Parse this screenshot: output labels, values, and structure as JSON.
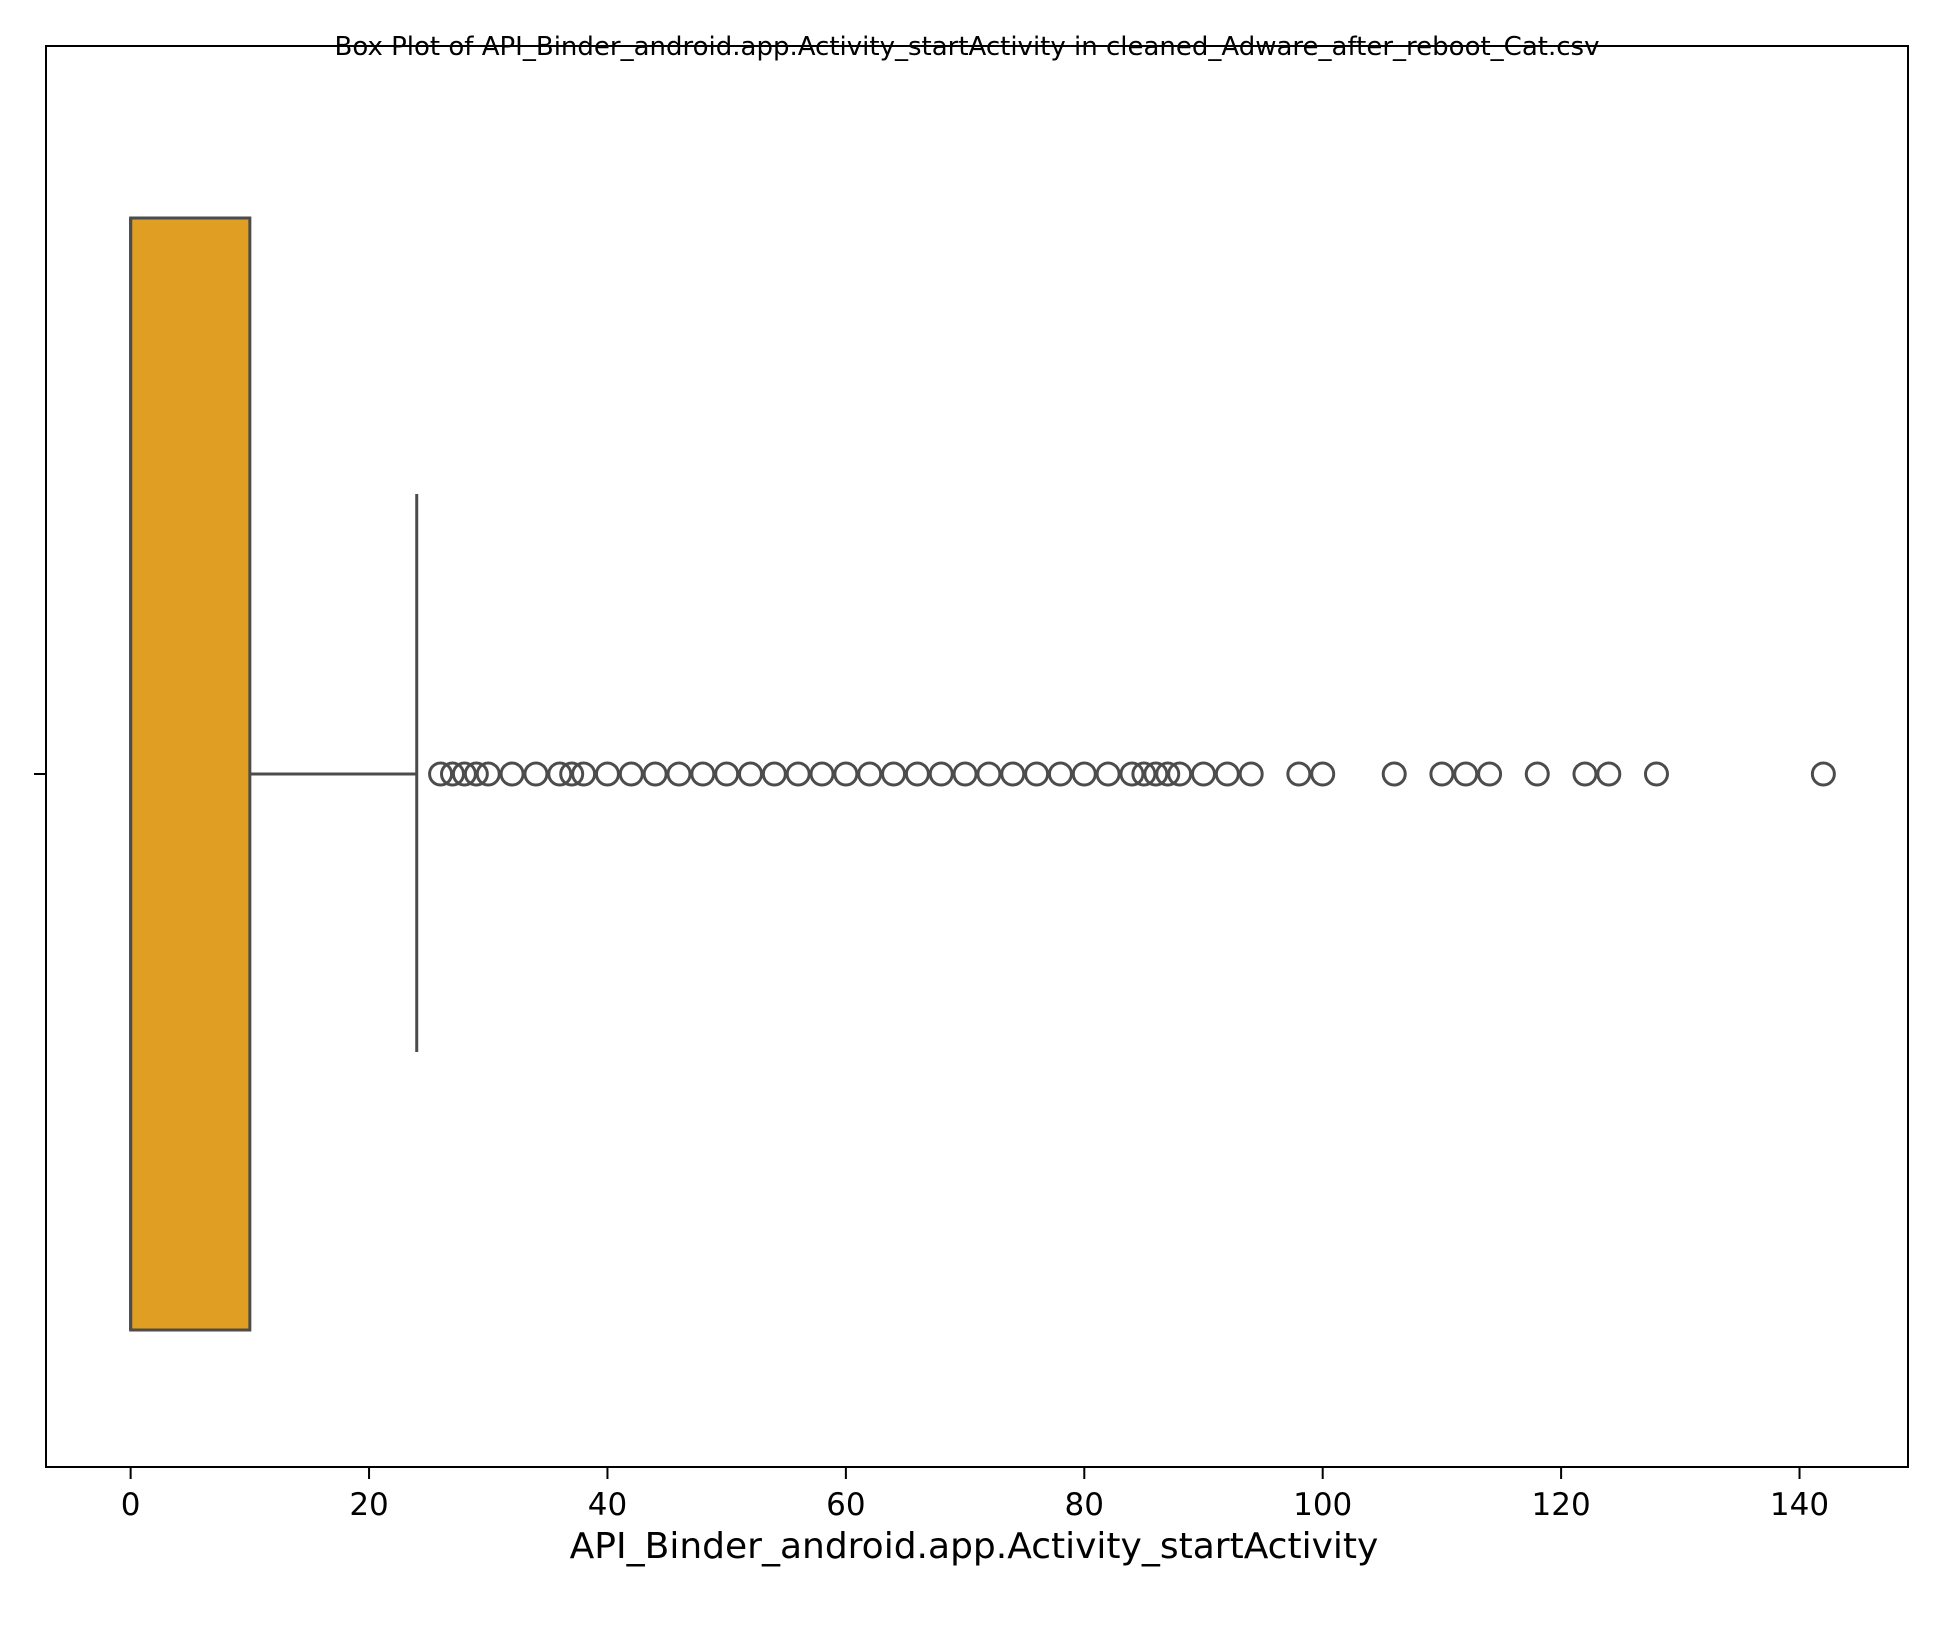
{
  "chart_data": {
    "type": "box",
    "title": "Box Plot of API_Binder_android.app.Activity_startActivity in cleaned_Adware_after_reboot_Cat.csv",
    "xlabel": "API_Binder_android.app.Activity_startActivity",
    "ylabel": "",
    "xlim": [
      -7.1,
      149.1
    ],
    "xticks": [
      0,
      20,
      40,
      60,
      80,
      100,
      120,
      140
    ],
    "grid": false,
    "orientation": "horizontal",
    "box": {
      "min": 0,
      "q1": 0,
      "median": 0,
      "q3": 10,
      "whisker_high": 24
    },
    "outliers": [
      26,
      27,
      28,
      29,
      30,
      32,
      34,
      36,
      37,
      38,
      40,
      42,
      44,
      46,
      48,
      50,
      52,
      54,
      56,
      58,
      60,
      62,
      64,
      66,
      68,
      70,
      72,
      74,
      76,
      78,
      80,
      82,
      84,
      85,
      86,
      87,
      88,
      90,
      92,
      94,
      98,
      100,
      106,
      110,
      112,
      114,
      118,
      122,
      124,
      128,
      142
    ],
    "colors": {
      "box_fill": "#e09e23",
      "line": "#4c4c4c",
      "axes": "#000000"
    }
  }
}
